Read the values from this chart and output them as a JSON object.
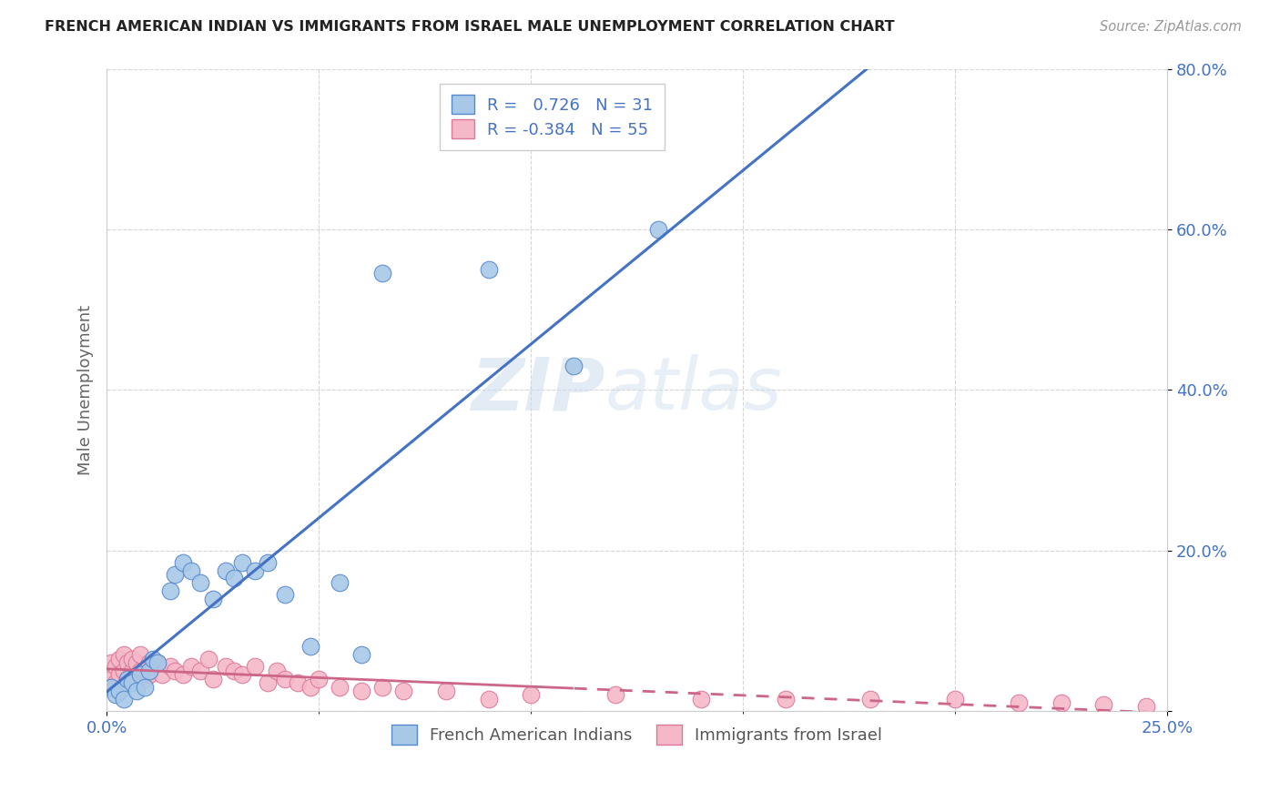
{
  "title": "FRENCH AMERICAN INDIAN VS IMMIGRANTS FROM ISRAEL MALE UNEMPLOYMENT CORRELATION CHART",
  "source": "Source: ZipAtlas.com",
  "ylabel_label": "Male Unemployment",
  "watermark_zip": "ZIP",
  "watermark_atlas": "atlas",
  "blue_R": 0.726,
  "blue_N": 31,
  "pink_R": -0.384,
  "pink_N": 55,
  "blue_color": "#a8c8e8",
  "blue_edge_color": "#5588cc",
  "blue_line_color": "#4472c4",
  "pink_color": "#f4b8c8",
  "pink_edge_color": "#dd7799",
  "pink_line_color": "#cc6688",
  "blue_scatter_x": [
    0.001,
    0.002,
    0.003,
    0.004,
    0.005,
    0.006,
    0.007,
    0.008,
    0.009,
    0.01,
    0.011,
    0.012,
    0.015,
    0.016,
    0.018,
    0.02,
    0.022,
    0.025,
    0.028,
    0.03,
    0.032,
    0.035,
    0.038,
    0.042,
    0.048,
    0.055,
    0.06,
    0.065,
    0.09,
    0.11,
    0.13
  ],
  "blue_scatter_y": [
    0.03,
    0.02,
    0.025,
    0.015,
    0.04,
    0.035,
    0.025,
    0.045,
    0.03,
    0.05,
    0.065,
    0.06,
    0.15,
    0.17,
    0.185,
    0.175,
    0.16,
    0.14,
    0.175,
    0.165,
    0.185,
    0.175,
    0.185,
    0.145,
    0.08,
    0.16,
    0.07,
    0.545,
    0.55,
    0.43,
    0.6
  ],
  "pink_scatter_x": [
    0.001,
    0.001,
    0.002,
    0.002,
    0.003,
    0.003,
    0.004,
    0.004,
    0.005,
    0.005,
    0.006,
    0.006,
    0.007,
    0.007,
    0.008,
    0.008,
    0.009,
    0.01,
    0.01,
    0.011,
    0.012,
    0.013,
    0.015,
    0.016,
    0.018,
    0.02,
    0.022,
    0.024,
    0.025,
    0.028,
    0.03,
    0.032,
    0.035,
    0.038,
    0.04,
    0.042,
    0.045,
    0.048,
    0.05,
    0.055,
    0.06,
    0.065,
    0.07,
    0.08,
    0.09,
    0.1,
    0.12,
    0.14,
    0.16,
    0.18,
    0.2,
    0.215,
    0.225,
    0.235,
    0.245
  ],
  "pink_scatter_y": [
    0.04,
    0.06,
    0.035,
    0.055,
    0.045,
    0.065,
    0.05,
    0.07,
    0.04,
    0.06,
    0.05,
    0.065,
    0.045,
    0.06,
    0.05,
    0.07,
    0.04,
    0.045,
    0.06,
    0.055,
    0.06,
    0.045,
    0.055,
    0.05,
    0.045,
    0.055,
    0.05,
    0.065,
    0.04,
    0.055,
    0.05,
    0.045,
    0.055,
    0.035,
    0.05,
    0.04,
    0.035,
    0.03,
    0.04,
    0.03,
    0.025,
    0.03,
    0.025,
    0.025,
    0.015,
    0.02,
    0.02,
    0.015,
    0.015,
    0.015,
    0.015,
    0.01,
    0.01,
    0.008,
    0.006
  ],
  "xlim": [
    0.0,
    0.25
  ],
  "ylim": [
    0.0,
    0.8
  ],
  "ytick_positions": [
    0.0,
    0.2,
    0.4,
    0.6,
    0.8
  ],
  "ytick_labels": [
    "",
    "20.0%",
    "40.0%",
    "60.0%",
    "80.0%"
  ],
  "xtick_positions": [
    0.0,
    0.25
  ],
  "xtick_labels": [
    "0.0%",
    "25.0%"
  ],
  "grid_minor_xticks": [
    0.05,
    0.1,
    0.15,
    0.2
  ],
  "grid_yticks": [
    0.2,
    0.4,
    0.6,
    0.8
  ],
  "tick_color": "#4472c4",
  "label_color": "#666666",
  "grid_color": "#cccccc",
  "spine_color": "#cccccc"
}
